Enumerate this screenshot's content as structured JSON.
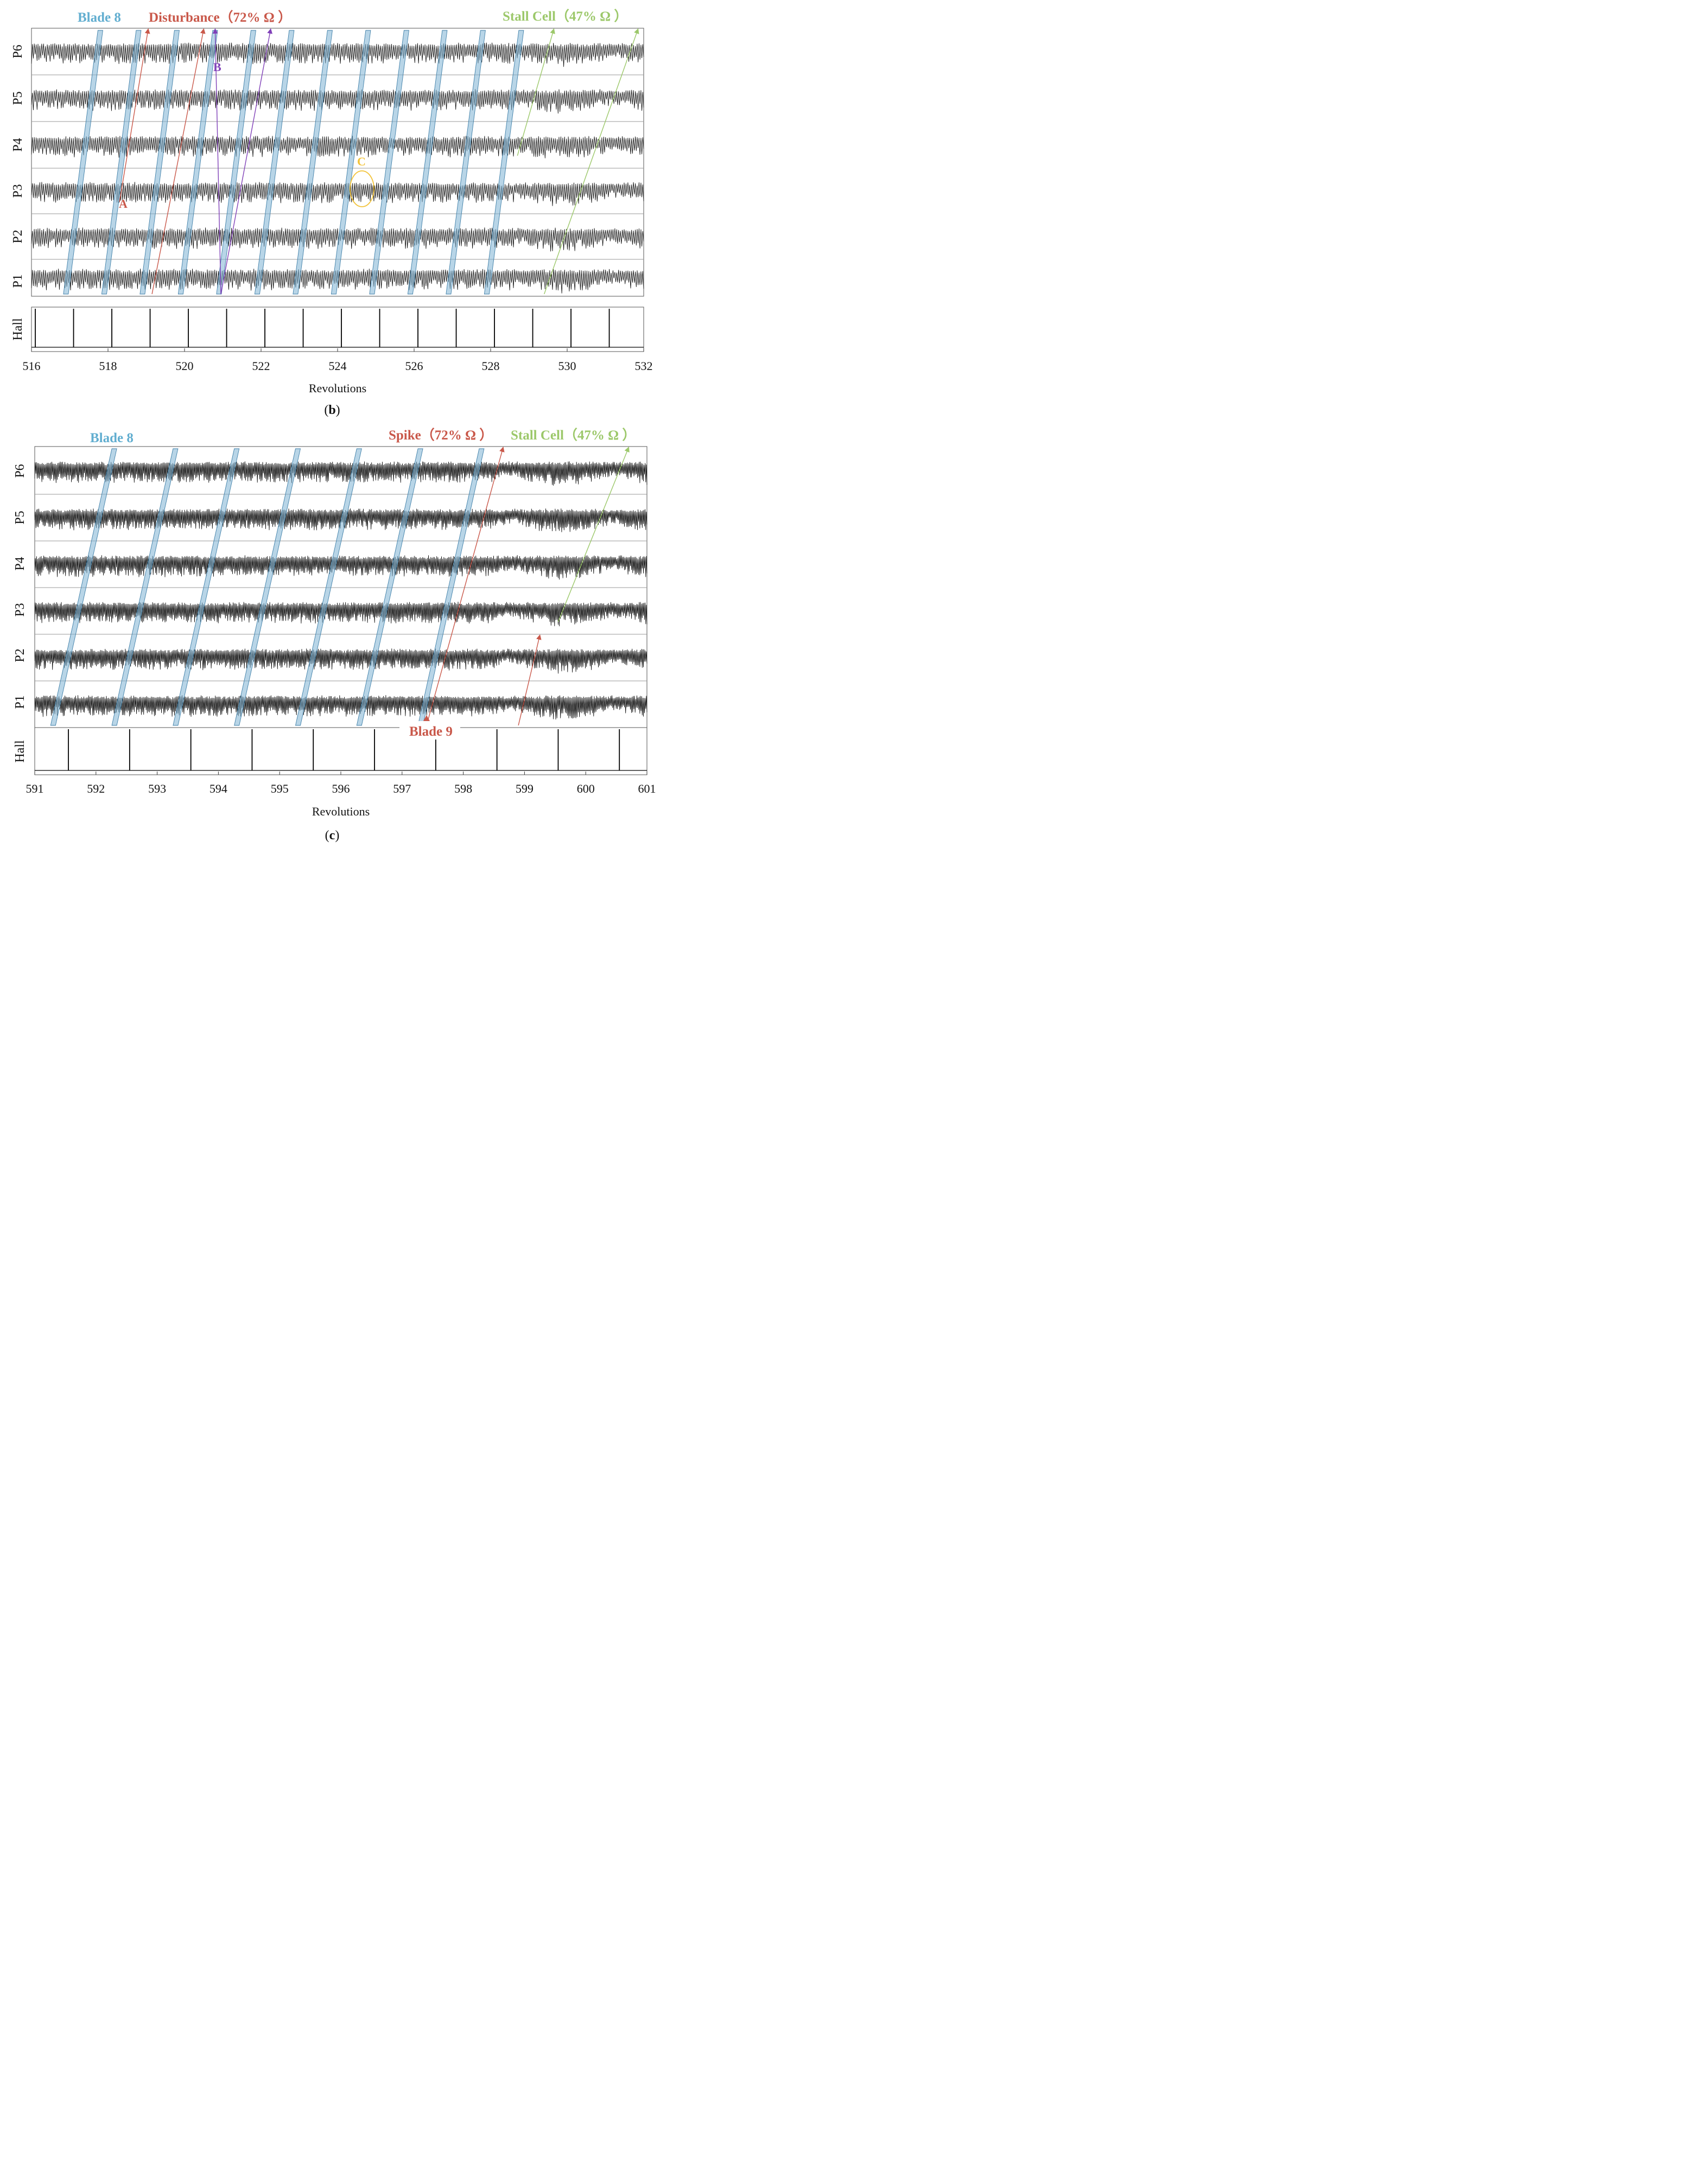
{
  "colors": {
    "blade": "#62aed0",
    "disturbance": "#c9584a",
    "purple": "#8040b8",
    "stall": "#9cc86a",
    "highlight": "#f2c33a",
    "trace": "#000000"
  },
  "chart_data": [
    {
      "type": "line",
      "panel_label": "(b)",
      "sub_letter": "b",
      "xlabel": "Revolutions",
      "x_range": [
        516,
        532
      ],
      "x_ticks": [
        516,
        518,
        520,
        522,
        524,
        526,
        528,
        530,
        532
      ],
      "channels": [
        "P6",
        "P5",
        "P4",
        "P3",
        "P2",
        "P1"
      ],
      "hall_label": "Hall",
      "hall_pulses": [
        516.1,
        517.1,
        518.1,
        519.1,
        520.1,
        521.1,
        522.1,
        523.1,
        524.1,
        525.1,
        526.1,
        527.1,
        528.1,
        529.1,
        530.1,
        531.1
      ],
      "series_description": "Dynamic pressure traces P1-P6 with blade passing spikes; waveform becomes irregular after ~528.5 revolutions (stall)",
      "stall_onset_rev": 528.6,
      "blade_band": {
        "label": "Blade 8",
        "offset_rev": 0.9,
        "x_p1": [
          516.9,
          517.9,
          518.9,
          519.9,
          520.9,
          521.9,
          522.9,
          523.9,
          524.9,
          525.9,
          526.9,
          527.9
        ]
      },
      "annotations": {
        "blade_title": "Blade 8",
        "disturbance_title": "Disturbance（72% Ω ）",
        "stall_title": "Stall Cell（47% Ω ）",
        "letter_a": "A",
        "letter_b": "B",
        "letter_c": "C"
      },
      "disturbance_paths": [
        {
          "name": "A",
          "x_start": 518.3,
          "x_end": 519.05,
          "from_channel": "P3",
          "to_channel": "P6"
        },
        {
          "name": "disturbance-2",
          "x_start": 519.15,
          "x_end": 520.5,
          "from_channel": "P1",
          "to_channel": "P6"
        }
      ],
      "purple_paths": [
        {
          "name": "B",
          "x_start": 520.95,
          "x_end": 520.8,
          "from_channel": "P1",
          "to_channel": "P6"
        },
        {
          "name": "purple-2",
          "x_start": 520.95,
          "x_end": 522.25,
          "from_channel": "P1",
          "to_channel": "P6"
        }
      ],
      "stall_paths": [
        {
          "name": "stall-1",
          "x_start": 528.7,
          "x_end": 529.65,
          "from_channel": "P4",
          "to_channel": "P6"
        },
        {
          "name": "stall-2",
          "x_start": 529.4,
          "x_end": 531.85,
          "from_channel": "P1",
          "to_channel": "P6"
        }
      ],
      "highlight_c": {
        "x": 524.65,
        "channel": "P3"
      }
    },
    {
      "type": "line",
      "panel_label": "(c)",
      "sub_letter": "c",
      "xlabel": "Revolutions",
      "x_range": [
        591,
        601
      ],
      "x_ticks": [
        591,
        592,
        593,
        594,
        595,
        596,
        597,
        598,
        599,
        600,
        601
      ],
      "channels": [
        "P6",
        "P5",
        "P4",
        "P3",
        "P2",
        "P1"
      ],
      "hall_label": "Hall",
      "hall_pulses": [
        591.55,
        592.55,
        593.55,
        594.55,
        595.55,
        596.55,
        597.55,
        598.55,
        599.55,
        600.55
      ],
      "series_description": "Dynamic pressure traces P1-P6; spike emerges at Blade 9 near 597.4 revolutions, stall cell later",
      "stall_onset_rev": 598.4,
      "blade_band": {
        "label": "Blade 8",
        "offset_rev": 1.0,
        "x_p1": [
          591.3,
          592.3,
          593.3,
          594.3,
          595.3,
          596.3,
          597.3
        ]
      },
      "annotations": {
        "blade_title": "Blade 8",
        "spike_title": "Spike（72% Ω ）",
        "stall_title": "Stall Cell（47% Ω ）",
        "blade9_label": "Blade 9"
      },
      "spike_paths": [
        {
          "name": "spike-main",
          "x_start": 597.4,
          "x_end": 598.65,
          "from_channel": "P1",
          "to_channel": "P6"
        },
        {
          "name": "spike-2",
          "x_start": 598.9,
          "x_end": 599.25,
          "from_channel": "P1",
          "to_channel": "P2"
        }
      ],
      "stall_paths": [
        {
          "name": "stall-1",
          "x_start": 599.55,
          "x_end": 600.7,
          "from_channel": "P3",
          "to_channel": "P6"
        }
      ],
      "blade9_marker_x": 597.4
    }
  ]
}
